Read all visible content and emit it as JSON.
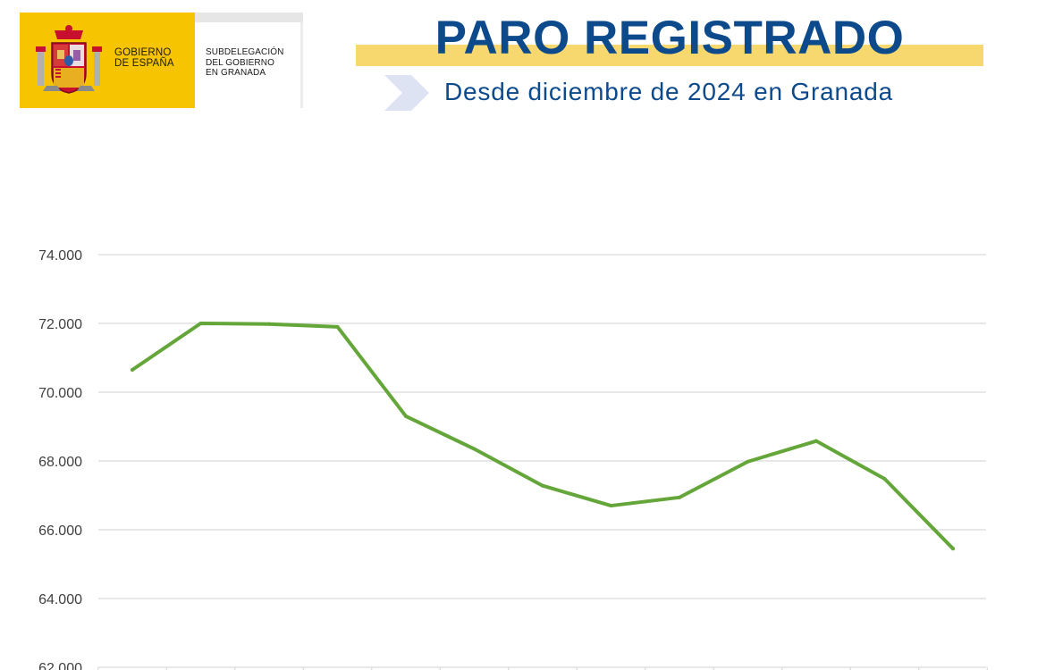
{
  "header": {
    "logo_ministry": "GOBIERNO\nDE ESPAÑA",
    "logo_office": "SUBDELEGACIÓN\nDEL GOBIERNO\nEN GRANADA",
    "title": "PARO REGISTRADO",
    "subtitle": "Desde diciembre de 2024 en Granada"
  },
  "colors": {
    "title_blue": "#0d4a8c",
    "title_highlight": "#f7d86e",
    "logo_yellow": "#f6c400",
    "line_green": "#64a63a",
    "grid": "#d9d9d9"
  },
  "chart_data": {
    "type": "line",
    "title": "",
    "xlabel": "",
    "ylabel": "",
    "ylim": [
      62000,
      74000
    ],
    "yticks": [
      62000,
      64000,
      66000,
      68000,
      70000,
      72000,
      74000
    ],
    "ytick_labels": [
      "62.000",
      "64.000",
      "66.000",
      "68.000",
      "70.000",
      "72.000",
      "74.000"
    ],
    "grid": true,
    "series": [
      {
        "values": [
          70650,
          72000,
          71980,
          71900,
          69300,
          68350,
          67280,
          66700,
          66940,
          67980,
          68580,
          67480,
          65450
        ]
      }
    ]
  }
}
